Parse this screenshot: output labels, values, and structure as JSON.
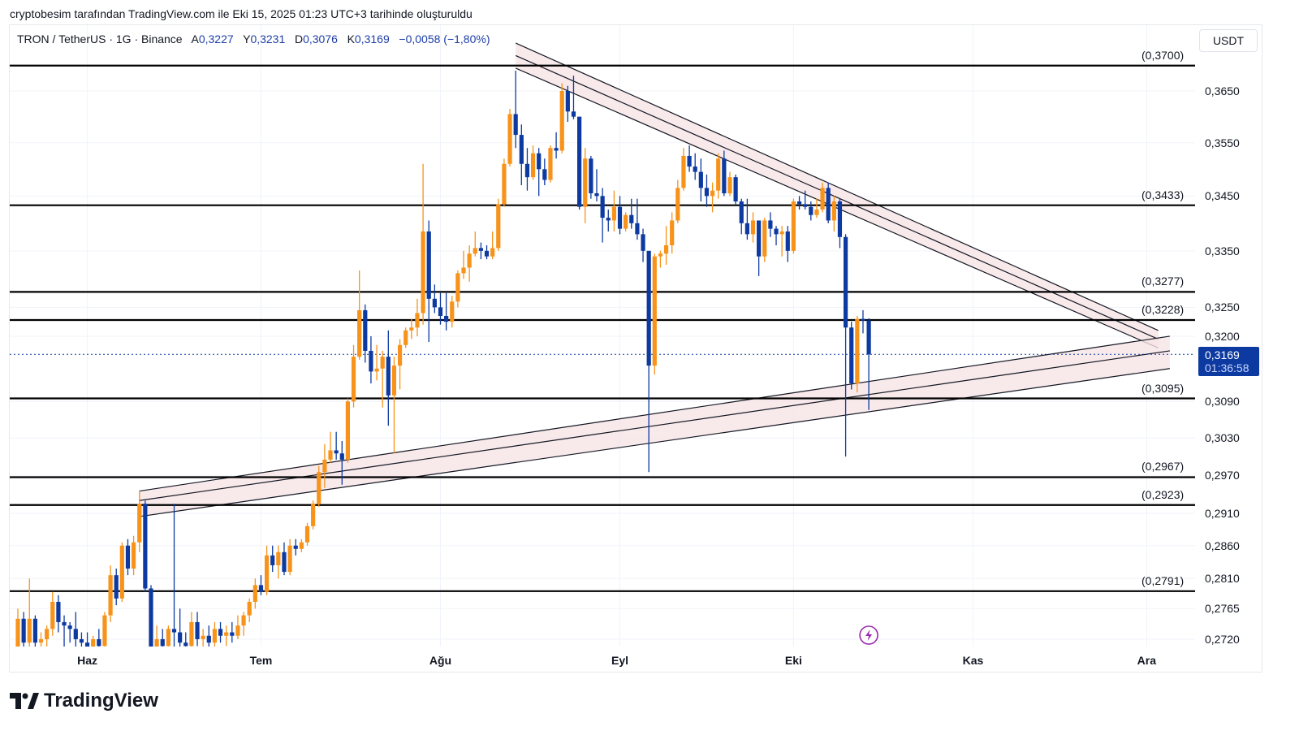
{
  "attribution": "cryptobesim tarafından TradingView.com ile Eki 15, 2025 01:23 UTC+3 tarihinde oluşturuldu",
  "legend": {
    "symbol": "TRON / TetherUS · 1G · Binance",
    "open_label": "A",
    "open": "0,3227",
    "high_label": "Y",
    "high": "0,3231",
    "low_label": "D",
    "low": "0,3076",
    "close_label": "K",
    "close": "0,3169",
    "change": "−0,0058 (−1,80%)"
  },
  "currency": "USDT",
  "current_price": {
    "value": "0,3169",
    "countdown": "01:36:58"
  },
  "logo_text": "TradingView",
  "colors": {
    "up": "#f7931a",
    "down": "#0d3aa0",
    "level": "#000000",
    "channel_fill": "#f6e4e6",
    "accent": "#0d3aa0",
    "event": "#9c27b0"
  },
  "event_icon": "lightning-icon",
  "chart_data": {
    "type": "candlestick",
    "title": "TRON / TetherUS · 1G · Binance",
    "scale": "log",
    "ylim": [
      0.2705,
      0.3745
    ],
    "y_ticks": [
      {
        "value": 0.365,
        "label": "0,3650"
      },
      {
        "value": 0.355,
        "label": "0,3550"
      },
      {
        "value": 0.345,
        "label": "0,3450"
      },
      {
        "value": 0.335,
        "label": "0,3350"
      },
      {
        "value": 0.325,
        "label": "0,3250"
      },
      {
        "value": 0.32,
        "label": "0,3200"
      },
      {
        "value": 0.309,
        "label": "0,3090"
      },
      {
        "value": 0.303,
        "label": "0,3030"
      },
      {
        "value": 0.297,
        "label": "0,2970"
      },
      {
        "value": 0.291,
        "label": "0,2910"
      },
      {
        "value": 0.286,
        "label": "0,2860"
      },
      {
        "value": 0.281,
        "label": "0,2810"
      },
      {
        "value": 0.2765,
        "label": "0,2765"
      },
      {
        "value": 0.272,
        "label": "0,2720"
      }
    ],
    "x_ticks": [
      {
        "index": 12,
        "label": "Haz"
      },
      {
        "index": 42,
        "label": "Tem"
      },
      {
        "index": 73,
        "label": "Ağu"
      },
      {
        "index": 104,
        "label": "Eyl"
      },
      {
        "index": 134,
        "label": "Eki"
      },
      {
        "index": 165,
        "label": "Kas"
      },
      {
        "index": 195,
        "label": "Ara"
      }
    ],
    "levels": [
      {
        "value": 0.37,
        "label": "(0,3700)"
      },
      {
        "value": 0.3433,
        "label": "(0,3433)"
      },
      {
        "value": 0.3277,
        "label": "(0,3277)"
      },
      {
        "value": 0.3228,
        "label": "(0,3228)"
      },
      {
        "value": 0.3095,
        "label": "(0,3095)"
      },
      {
        "value": 0.2967,
        "label": "(0,2967)"
      },
      {
        "value": 0.2923,
        "label": "(0,2923)"
      },
      {
        "value": 0.2791,
        "label": "(0,2791)"
      }
    ],
    "descending_channel": {
      "start_index": 86,
      "end_index": 197,
      "lines": [
        [
          0.3745,
          0.321
        ],
        [
          0.372,
          0.3195
        ],
        [
          0.3695,
          0.318
        ]
      ]
    },
    "ascending_channel": {
      "start_index": 21,
      "end_index": 199,
      "lines": [
        [
          0.2945,
          0.32
        ],
        [
          0.293,
          0.3175
        ],
        [
          0.2905,
          0.3145
        ]
      ]
    },
    "last_price": 0.3169,
    "event_index": 147,
    "ohlc": [
      [
        0.2705,
        0.2765,
        0.27,
        0.275
      ],
      [
        0.275,
        0.276,
        0.27,
        0.2715
      ],
      [
        0.2715,
        0.281,
        0.2705,
        0.275
      ],
      [
        0.275,
        0.2755,
        0.27,
        0.2715
      ],
      [
        0.2715,
        0.273,
        0.27,
        0.272
      ],
      [
        0.272,
        0.274,
        0.2705,
        0.2735
      ],
      [
        0.2735,
        0.279,
        0.2725,
        0.2775
      ],
      [
        0.2775,
        0.2785,
        0.273,
        0.2745
      ],
      [
        0.2745,
        0.2755,
        0.27,
        0.274
      ],
      [
        0.274,
        0.2745,
        0.2715,
        0.2735
      ],
      [
        0.2735,
        0.276,
        0.2705,
        0.272
      ],
      [
        0.272,
        0.273,
        0.27,
        0.2715
      ],
      [
        0.2715,
        0.273,
        0.2695,
        0.2705
      ],
      [
        0.2705,
        0.2725,
        0.27,
        0.272
      ],
      [
        0.272,
        0.2735,
        0.27,
        0.271
      ],
      [
        0.271,
        0.276,
        0.2705,
        0.2755
      ],
      [
        0.2755,
        0.283,
        0.2745,
        0.2815
      ],
      [
        0.2815,
        0.2825,
        0.277,
        0.278
      ],
      [
        0.278,
        0.2865,
        0.2775,
        0.286
      ],
      [
        0.286,
        0.287,
        0.2815,
        0.2825
      ],
      [
        0.2825,
        0.2875,
        0.2815,
        0.2865
      ],
      [
        0.2865,
        0.2945,
        0.285,
        0.2925
      ],
      [
        0.2925,
        0.293,
        0.279,
        0.2795
      ],
      [
        0.2795,
        0.28,
        0.27,
        0.2705
      ],
      [
        0.2705,
        0.274,
        0.27,
        0.272
      ],
      [
        0.272,
        0.2735,
        0.27,
        0.271
      ],
      [
        0.271,
        0.274,
        0.27,
        0.2735
      ],
      [
        0.2735,
        0.2925,
        0.27,
        0.273
      ],
      [
        0.273,
        0.2765,
        0.27,
        0.2715
      ],
      [
        0.2715,
        0.273,
        0.27,
        0.271
      ],
      [
        0.271,
        0.276,
        0.27,
        0.2745
      ],
      [
        0.2745,
        0.276,
        0.271,
        0.272
      ],
      [
        0.272,
        0.2735,
        0.27,
        0.2725
      ],
      [
        0.2725,
        0.274,
        0.2705,
        0.2715
      ],
      [
        0.2715,
        0.2745,
        0.2705,
        0.2735
      ],
      [
        0.2735,
        0.2745,
        0.2715,
        0.2725
      ],
      [
        0.2725,
        0.274,
        0.271,
        0.273
      ],
      [
        0.273,
        0.2745,
        0.2715,
        0.2725
      ],
      [
        0.2725,
        0.2755,
        0.272,
        0.274
      ],
      [
        0.274,
        0.276,
        0.2725,
        0.2755
      ],
      [
        0.2755,
        0.278,
        0.2745,
        0.2775
      ],
      [
        0.2775,
        0.281,
        0.2765,
        0.28
      ],
      [
        0.28,
        0.2815,
        0.2785,
        0.279
      ],
      [
        0.279,
        0.286,
        0.2785,
        0.2845
      ],
      [
        0.2845,
        0.286,
        0.282,
        0.283
      ],
      [
        0.283,
        0.286,
        0.281,
        0.285
      ],
      [
        0.285,
        0.2865,
        0.2815,
        0.282
      ],
      [
        0.282,
        0.287,
        0.2815,
        0.286
      ],
      [
        0.286,
        0.287,
        0.2845,
        0.2855
      ],
      [
        0.2855,
        0.287,
        0.285,
        0.2865
      ],
      [
        0.2865,
        0.2895,
        0.286,
        0.289
      ],
      [
        0.289,
        0.293,
        0.2885,
        0.2925
      ],
      [
        0.2925,
        0.2985,
        0.292,
        0.2975
      ],
      [
        0.2975,
        0.302,
        0.295,
        0.2995
      ],
      [
        0.2995,
        0.304,
        0.299,
        0.301
      ],
      [
        0.301,
        0.304,
        0.2995,
        0.3005
      ],
      [
        0.3005,
        0.3025,
        0.2955,
        0.2995
      ],
      [
        0.2995,
        0.3095,
        0.299,
        0.309
      ],
      [
        0.309,
        0.3185,
        0.308,
        0.3165
      ],
      [
        0.3165,
        0.3315,
        0.316,
        0.3245
      ],
      [
        0.3245,
        0.3255,
        0.3155,
        0.3175
      ],
      [
        0.3175,
        0.32,
        0.312,
        0.314
      ],
      [
        0.314,
        0.3185,
        0.3125,
        0.3145
      ],
      [
        0.3145,
        0.3175,
        0.308,
        0.3165
      ],
      [
        0.3165,
        0.321,
        0.305,
        0.31
      ],
      [
        0.31,
        0.3165,
        0.3005,
        0.315
      ],
      [
        0.315,
        0.3195,
        0.311,
        0.3185
      ],
      [
        0.3185,
        0.3215,
        0.318,
        0.321
      ],
      [
        0.321,
        0.323,
        0.3195,
        0.3215
      ],
      [
        0.3215,
        0.3265,
        0.32,
        0.324
      ],
      [
        0.324,
        0.351,
        0.322,
        0.3385
      ],
      [
        0.3385,
        0.3405,
        0.319,
        0.3265
      ],
      [
        0.3265,
        0.329,
        0.324,
        0.325
      ],
      [
        0.325,
        0.3275,
        0.322,
        0.3235
      ],
      [
        0.3235,
        0.3275,
        0.321,
        0.3225
      ],
      [
        0.3225,
        0.327,
        0.3215,
        0.326
      ],
      [
        0.326,
        0.3315,
        0.325,
        0.331
      ],
      [
        0.331,
        0.335,
        0.33,
        0.332
      ],
      [
        0.332,
        0.336,
        0.3295,
        0.3345
      ],
      [
        0.3345,
        0.3385,
        0.334,
        0.3355
      ],
      [
        0.3355,
        0.3365,
        0.3335,
        0.335
      ],
      [
        0.335,
        0.336,
        0.3335,
        0.334
      ],
      [
        0.334,
        0.3385,
        0.3335,
        0.3355
      ],
      [
        0.3355,
        0.3445,
        0.335,
        0.3435
      ],
      [
        0.3435,
        0.352,
        0.343,
        0.351
      ],
      [
        0.351,
        0.3615,
        0.3505,
        0.3605
      ],
      [
        0.3605,
        0.369,
        0.354,
        0.3565
      ],
      [
        0.3565,
        0.3585,
        0.347,
        0.351
      ],
      [
        0.351,
        0.354,
        0.346,
        0.3485
      ],
      [
        0.3485,
        0.3545,
        0.348,
        0.353
      ],
      [
        0.353,
        0.354,
        0.345,
        0.35
      ],
      [
        0.35,
        0.352,
        0.347,
        0.348
      ],
      [
        0.348,
        0.3545,
        0.3475,
        0.354
      ],
      [
        0.354,
        0.357,
        0.352,
        0.3535
      ],
      [
        0.3535,
        0.3665,
        0.353,
        0.365
      ],
      [
        0.365,
        0.366,
        0.359,
        0.361
      ],
      [
        0.361,
        0.368,
        0.3595,
        0.36
      ],
      [
        0.36,
        0.36,
        0.3425,
        0.343
      ],
      [
        0.343,
        0.354,
        0.34,
        0.352
      ],
      [
        0.352,
        0.3525,
        0.3445,
        0.3455
      ],
      [
        0.3455,
        0.35,
        0.344,
        0.345
      ],
      [
        0.345,
        0.3465,
        0.3365,
        0.341
      ],
      [
        0.341,
        0.3425,
        0.3385,
        0.3405
      ],
      [
        0.3405,
        0.346,
        0.3385,
        0.343
      ],
      [
        0.343,
        0.345,
        0.338,
        0.339
      ],
      [
        0.339,
        0.342,
        0.3385,
        0.3415
      ],
      [
        0.3415,
        0.3445,
        0.339,
        0.34
      ],
      [
        0.34,
        0.3445,
        0.337,
        0.338
      ],
      [
        0.338,
        0.339,
        0.333,
        0.335
      ],
      [
        0.335,
        0.335,
        0.2975,
        0.315
      ],
      [
        0.315,
        0.3345,
        0.3135,
        0.334
      ],
      [
        0.334,
        0.335,
        0.332,
        0.3345
      ],
      [
        0.3345,
        0.3395,
        0.3325,
        0.336
      ],
      [
        0.336,
        0.342,
        0.3345,
        0.3405
      ],
      [
        0.3405,
        0.348,
        0.34,
        0.3465
      ],
      [
        0.3465,
        0.354,
        0.346,
        0.3525
      ],
      [
        0.3525,
        0.3545,
        0.3495,
        0.3505
      ],
      [
        0.3505,
        0.353,
        0.348,
        0.3495
      ],
      [
        0.3495,
        0.352,
        0.344,
        0.3465
      ],
      [
        0.3465,
        0.349,
        0.343,
        0.345
      ],
      [
        0.345,
        0.3475,
        0.342,
        0.346
      ],
      [
        0.346,
        0.353,
        0.3445,
        0.352
      ],
      [
        0.352,
        0.3535,
        0.345,
        0.3455
      ],
      [
        0.3455,
        0.3495,
        0.345,
        0.3485
      ],
      [
        0.3485,
        0.349,
        0.3435,
        0.344
      ],
      [
        0.344,
        0.3445,
        0.338,
        0.34
      ],
      [
        0.34,
        0.3445,
        0.337,
        0.338
      ],
      [
        0.338,
        0.342,
        0.3365,
        0.3405
      ],
      [
        0.3405,
        0.3405,
        0.3305,
        0.334
      ],
      [
        0.334,
        0.341,
        0.333,
        0.3405
      ],
      [
        0.3405,
        0.342,
        0.3375,
        0.339
      ],
      [
        0.339,
        0.3395,
        0.336,
        0.338
      ],
      [
        0.338,
        0.3395,
        0.334,
        0.3385
      ],
      [
        0.3385,
        0.3395,
        0.333,
        0.335
      ],
      [
        0.335,
        0.3445,
        0.3345,
        0.344
      ],
      [
        0.344,
        0.345,
        0.3425,
        0.3435
      ],
      [
        0.3435,
        0.346,
        0.3425,
        0.343
      ],
      [
        0.343,
        0.344,
        0.3405,
        0.3415
      ],
      [
        0.3415,
        0.3445,
        0.341,
        0.3425
      ],
      [
        0.3425,
        0.3475,
        0.342,
        0.3465
      ],
      [
        0.3465,
        0.3475,
        0.34,
        0.3405
      ],
      [
        0.3405,
        0.345,
        0.3385,
        0.344
      ],
      [
        0.344,
        0.3445,
        0.3355,
        0.3375
      ],
      [
        0.3375,
        0.338,
        0.3,
        0.3215
      ],
      [
        0.3215,
        0.3225,
        0.311,
        0.312
      ],
      [
        0.312,
        0.3235,
        0.3105,
        0.323
      ],
      [
        0.323,
        0.3245,
        0.3205,
        0.3227
      ],
      [
        0.3227,
        0.3231,
        0.3076,
        0.3169
      ]
    ]
  }
}
